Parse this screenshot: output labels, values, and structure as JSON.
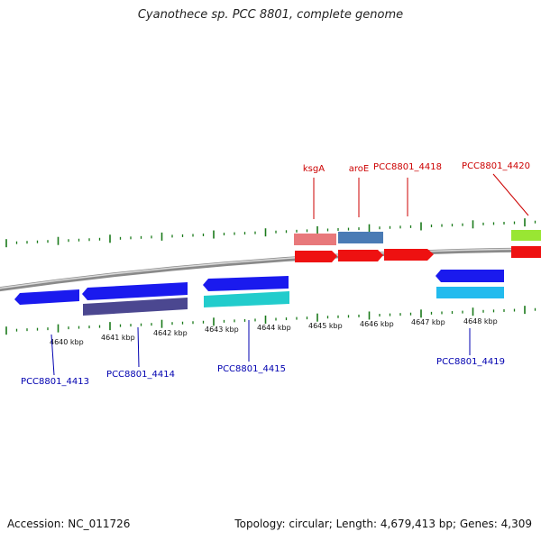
{
  "title": "Cyanothece sp. PCC 8801, complete genome",
  "footer": {
    "accession": "Accession: NC_011726",
    "stats": "Topology: circular; Length: 4,679,413 bp; Genes: 4,309"
  },
  "colors": {
    "forward_label": "#cc0000",
    "reverse_label": "#0000b0",
    "tick": "#1a7a1a",
    "backbone": "#8a8a8a"
  },
  "scale": {
    "unit": "kbp",
    "labels": [
      {
        "kbp": 4640,
        "text": "4640 kbp"
      },
      {
        "kbp": 4641,
        "text": "4641 kbp"
      },
      {
        "kbp": 4642,
        "text": "4642 kbp"
      },
      {
        "kbp": 4643,
        "text": "4643 kbp"
      },
      {
        "kbp": 4644,
        "text": "4644 kbp"
      },
      {
        "kbp": 4645,
        "text": "4645 kbp"
      },
      {
        "kbp": 4646,
        "text": "4646 kbp"
      },
      {
        "kbp": 4647,
        "text": "4647 kbp"
      },
      {
        "kbp": 4648,
        "text": "4648 kbp"
      }
    ]
  },
  "forward_labels": [
    "ksgA",
    "aroE",
    "PCC8801_4418",
    "PCC8801_4420"
  ],
  "reverse_labels": [
    "PCC8801_4413",
    "PCC8801_4414",
    "PCC8801_4415",
    "PCC8801_4419"
  ]
}
